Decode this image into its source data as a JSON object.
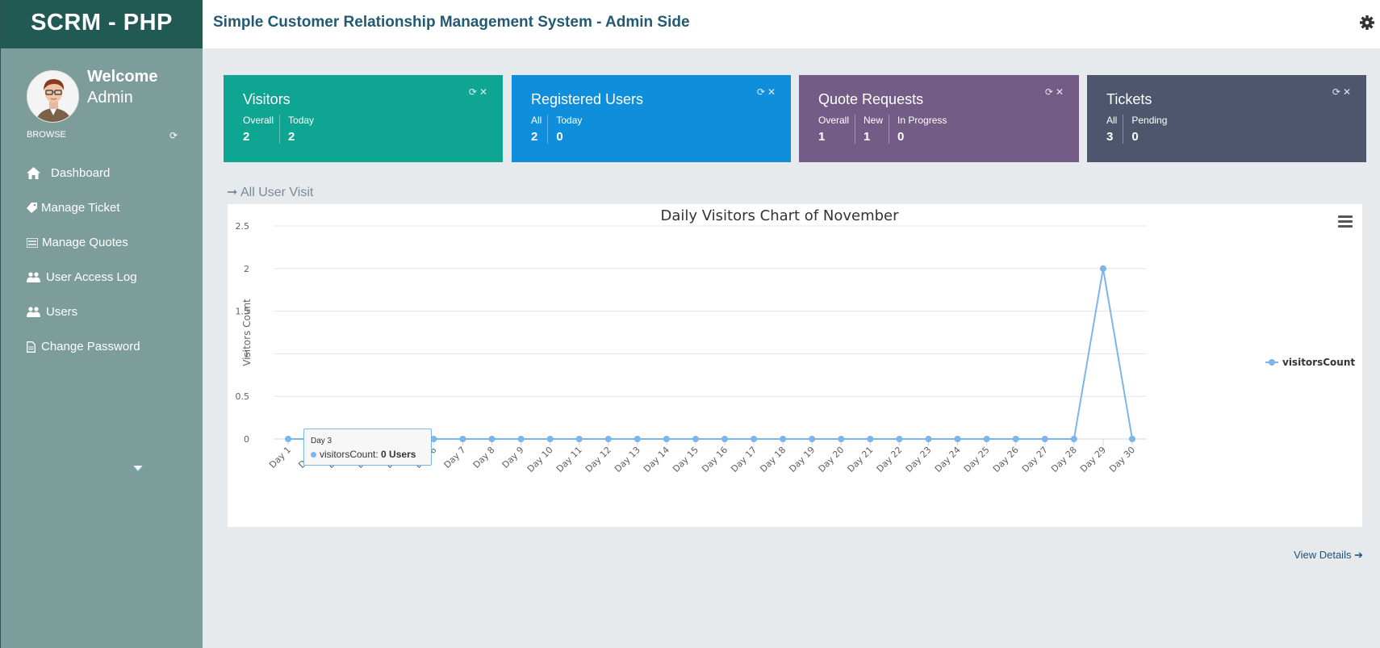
{
  "sidebar": {
    "brand": "SCRM - PHP",
    "welcome_line1": "Welcome",
    "welcome_line2": "Admin",
    "browse_label": "BROWSE",
    "items": [
      {
        "label": "Dashboard",
        "icon": "home-icon"
      },
      {
        "label": "Manage Ticket",
        "icon": "ticket-icon"
      },
      {
        "label": "Manage Quotes",
        "icon": "list-icon"
      },
      {
        "label": "User Access Log",
        "icon": "users-icon"
      },
      {
        "label": "Users",
        "icon": "users-icon"
      },
      {
        "label": "Change Password",
        "icon": "document-icon"
      }
    ]
  },
  "topbar": {
    "title": "Simple Customer Relationship Management System - Admin Side"
  },
  "cards": {
    "visitors": {
      "title": "Visitors",
      "stats": [
        {
          "label": "Overall",
          "value": "2"
        },
        {
          "label": "Today",
          "value": "2"
        }
      ]
    },
    "users": {
      "title": "Registered Users",
      "stats": [
        {
          "label": "All",
          "value": "2"
        },
        {
          "label": "Today",
          "value": "0"
        }
      ]
    },
    "quotes": {
      "title": "Quote Requests",
      "stats": [
        {
          "label": "Overall",
          "value": "1"
        },
        {
          "label": "New",
          "value": "1"
        },
        {
          "label": "In Progress",
          "value": "0"
        }
      ]
    },
    "tickets": {
      "title": "Tickets",
      "stats": [
        {
          "label": "All",
          "value": "3"
        },
        {
          "label": "Pending",
          "value": "0"
        }
      ]
    }
  },
  "section_label": "All User Visit",
  "view_details": "View Details",
  "tooltip": {
    "title": "Day 3",
    "series": "visitorsCount:",
    "value": "0 Users"
  },
  "colors": {
    "visitors": "#0ea593",
    "users": "#0f8fdb",
    "quotes": "#735c85",
    "tickets": "#4d566c",
    "sidebar": "#7d9d9b",
    "brand": "#215953",
    "series": "#7cb5ec"
  },
  "chart_data": {
    "type": "line",
    "title": "Daily Visitors Chart of November",
    "xlabel": "",
    "ylabel": "Visitors Count",
    "ylim": [
      0,
      2.5
    ],
    "yticks": [
      0,
      0.5,
      1,
      1.5,
      2,
      2.5
    ],
    "grid": true,
    "legend_position": "right",
    "categories": [
      "Day 1",
      "Day 2",
      "Day 3",
      "Day 4",
      "Day 5",
      "Day 6",
      "Day 7",
      "Day 8",
      "Day 9",
      "Day 10",
      "Day 11",
      "Day 12",
      "Day 13",
      "Day 14",
      "Day 15",
      "Day 16",
      "Day 17",
      "Day 18",
      "Day 19",
      "Day 20",
      "Day 21",
      "Day 22",
      "Day 23",
      "Day 24",
      "Day 25",
      "Day 26",
      "Day 27",
      "Day 28",
      "Day 29",
      "Day 30"
    ],
    "series": [
      {
        "name": "visitorsCount",
        "values": [
          0,
          0,
          0,
          0,
          0,
          0,
          0,
          0,
          0,
          0,
          0,
          0,
          0,
          0,
          0,
          0,
          0,
          0,
          0,
          0,
          0,
          0,
          0,
          0,
          0,
          0,
          0,
          0,
          2,
          0
        ]
      }
    ]
  }
}
